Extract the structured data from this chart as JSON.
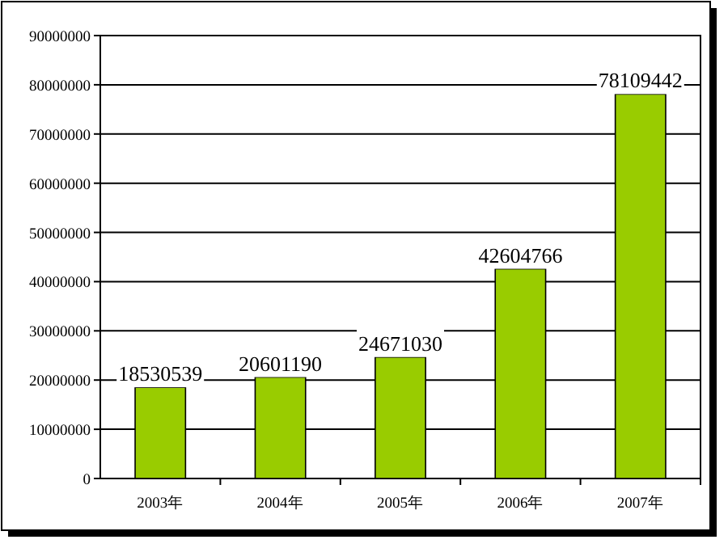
{
  "chart_data": {
    "type": "bar",
    "categories": [
      "2003年",
      "2004年",
      "2005年",
      "2006年",
      "2007年"
    ],
    "values": [
      18530539,
      20601190,
      24671030,
      42604766,
      78109442
    ],
    "color": "#99cc00",
    "ylim": [
      0,
      90000000
    ],
    "yticks": [
      0,
      10000000,
      20000000,
      30000000,
      40000000,
      50000000,
      60000000,
      70000000,
      80000000,
      90000000
    ],
    "grid": "y",
    "data_labels": true
  }
}
